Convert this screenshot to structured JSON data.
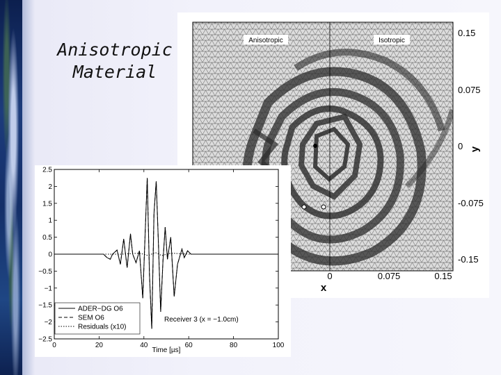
{
  "slide": {
    "title_line1": "Anisotropic",
    "title_line2": "Material"
  },
  "wavefield_panel": {
    "label_left": "Anisotropic",
    "label_right": "Isotropic",
    "y_axis": {
      "label": "y",
      "ticks": [
        "0.15",
        "0.075",
        "0",
        "-0.075",
        "-0.15"
      ]
    },
    "x_axis": {
      "label": "x",
      "ticks": [
        "0",
        "0.075",
        "0.15"
      ]
    }
  },
  "chart_data": {
    "type": "line",
    "xlabel": "Time [µs]",
    "ylabel": "",
    "xlim": [
      0,
      100
    ],
    "ylim": [
      -2.5,
      2.5
    ],
    "x_ticks": [
      "0",
      "20",
      "40",
      "60",
      "80",
      "100"
    ],
    "y_ticks": [
      "2.5",
      "2",
      "1.5",
      "1",
      "0.5",
      "0",
      "−0.5",
      "−1",
      "−1.5",
      "−2",
      "−2.5"
    ],
    "annotation": "Receiver 3 (x = −1.0cm)",
    "legend_position": "bottom-left",
    "series": [
      {
        "name": "ADER−DG O6",
        "style": "solid",
        "x": [
          0,
          20,
          22,
          23.5,
          25,
          26,
          28,
          29.5,
          31,
          32.5,
          34,
          35,
          36.5,
          38,
          39.5,
          40.5,
          41.5,
          42.5,
          43.5,
          44.5,
          45.5,
          46.5,
          47.5,
          48.5,
          49.5,
          50.5,
          52,
          53.5,
          55,
          57,
          58,
          59.5,
          61,
          65,
          100
        ],
        "y": [
          0,
          0,
          0,
          -0.1,
          -0.15,
          0,
          0.12,
          -0.3,
          0.45,
          -0.4,
          0.6,
          0,
          -0.25,
          0.1,
          -1.3,
          0.5,
          2.25,
          -0.6,
          -2.2,
          1.2,
          2.15,
          0.3,
          -1.7,
          -0.2,
          0.8,
          -0.15,
          0.5,
          -1.25,
          -0.3,
          0.15,
          -0.1,
          0.1,
          0,
          0,
          0
        ]
      },
      {
        "name": "SEM O6",
        "style": "dashed",
        "x": [
          0,
          20,
          22,
          23.5,
          25,
          26,
          28,
          29.5,
          31,
          32.5,
          34,
          35,
          36.5,
          38,
          39.5,
          40.5,
          41.5,
          42.5,
          43.5,
          44.5,
          45.5,
          46.5,
          47.5,
          48.5,
          49.5,
          50.5,
          52,
          53.5,
          55,
          57,
          58,
          59.5,
          61,
          65,
          100
        ],
        "y": [
          0,
          0,
          0,
          -0.1,
          -0.15,
          0,
          0.12,
          -0.3,
          0.45,
          -0.4,
          0.6,
          0,
          -0.25,
          0.1,
          -1.3,
          0.5,
          2.25,
          -0.6,
          -2.2,
          1.2,
          2.15,
          0.3,
          -1.7,
          -0.2,
          0.8,
          -0.15,
          0.5,
          -1.25,
          -0.3,
          0.15,
          -0.1,
          0.1,
          0,
          0,
          0
        ]
      },
      {
        "name": "Residuals (x10)",
        "style": "dotted",
        "x": [
          0,
          30,
          38,
          42,
          45,
          48,
          52,
          60,
          100
        ],
        "y": [
          0,
          0,
          0.03,
          -0.04,
          0.05,
          -0.04,
          0.03,
          0,
          0
        ]
      }
    ]
  }
}
